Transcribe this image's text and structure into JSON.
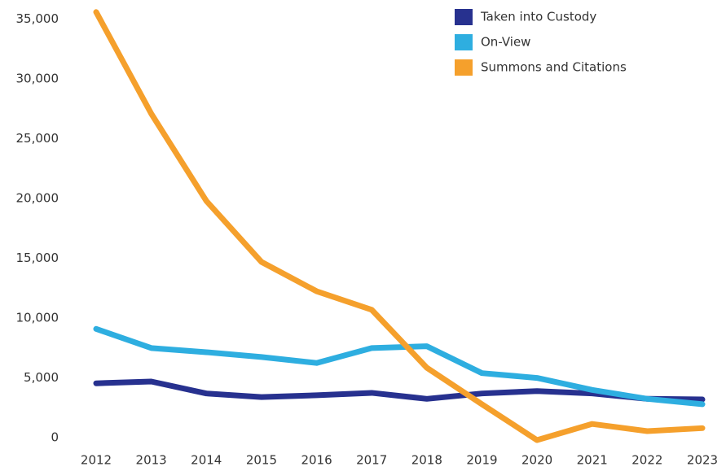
{
  "chart_data": {
    "type": "line",
    "categories": [
      "2012",
      "2013",
      "2014",
      "2015",
      "2016",
      "2017",
      "2018",
      "2019",
      "2020",
      "2021",
      "2022",
      "2023"
    ],
    "series": [
      {
        "name": "Taken into Custody",
        "color": "#27318f",
        "values": [
          4950,
          5100,
          4100,
          3800,
          3950,
          4150,
          3650,
          4100,
          4300,
          4100,
          3650,
          3600
        ]
      },
      {
        "name": "On-View",
        "color": "#2eaee0",
        "values": [
          9500,
          7900,
          7550,
          7150,
          6650,
          7900,
          8050,
          5800,
          5400,
          4400,
          3650,
          3200
        ]
      },
      {
        "name": "Summons and Citations",
        "color": "#f5a02c",
        "values": [
          36000,
          27500,
          20200,
          15100,
          12650,
          11100,
          6250,
          3200,
          200,
          1550,
          950,
          1200
        ]
      }
    ],
    "ylim": [
      -1500,
      36500
    ],
    "yticks": [
      0,
      {
        "value": 5000,
        "label": "5,000"
      },
      {
        "value": 10000,
        "label": "10,000"
      },
      {
        "value": 15000,
        "label": "15,000"
      },
      {
        "value": 20000,
        "label": "20,000"
      },
      {
        "value": 25000,
        "label": "25,000"
      },
      {
        "value": 30000,
        "label": "30,000"
      },
      {
        "value": 35000,
        "label": "35,000"
      }
    ],
    "grid": false,
    "legend": "top-right"
  }
}
